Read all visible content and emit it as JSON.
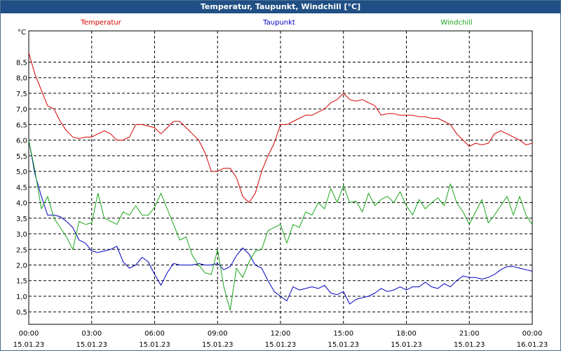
{
  "window": {
    "title": "Temperatur, Taupunkt, Windchill [°C]"
  },
  "colors": {
    "title_bg": "#1f4f84",
    "temperatur": "#d40000",
    "taupunkt": "#0000c0",
    "windchill": "#1aa51a",
    "grid": "#000000"
  },
  "chart_data": {
    "type": "line",
    "title": "Temperatur, Taupunkt, Windchill [°C]",
    "ylabel": "°C",
    "xlabel": "",
    "ylim": [
      0.1,
      9.5
    ],
    "xlim": [
      0,
      24
    ],
    "y_ticks": [
      0.5,
      1.0,
      1.5,
      2.0,
      2.5,
      3.0,
      3.5,
      4.0,
      4.5,
      5.0,
      5.5,
      6.0,
      6.5,
      7.0,
      7.5,
      8.0,
      8.5
    ],
    "y_tick_labels": [
      "0,5",
      "1,0",
      "1,5",
      "2,0",
      "2,5",
      "3,0",
      "3,5",
      "4,0",
      "4,5",
      "5,0",
      "5,5",
      "6,0",
      "6,5",
      "7,0",
      "7,5",
      "8,0",
      "8,5"
    ],
    "x_ticks": [
      {
        "hour": 0,
        "time": "00:00",
        "date": "15.01.23"
      },
      {
        "hour": 3,
        "time": "03:00",
        "date": "15.01.23"
      },
      {
        "hour": 6,
        "time": "06:00",
        "date": "15.01.23"
      },
      {
        "hour": 9,
        "time": "09:00",
        "date": "15.01.23"
      },
      {
        "hour": 12,
        "time": "12:00",
        "date": "15.01.23"
      },
      {
        "hour": 15,
        "time": "15:00",
        "date": "15.01.23"
      },
      {
        "hour": 18,
        "time": "18:00",
        "date": "15.01.23"
      },
      {
        "hour": 21,
        "time": "21:00",
        "date": "15.01.23"
      },
      {
        "hour": 24,
        "time": "00:00",
        "date": "16.01.23"
      }
    ],
    "grid": true,
    "series": [
      {
        "name": "Temperatur",
        "color": "#d40000",
        "x": [
          0,
          0.3,
          0.6,
          0.9,
          1.2,
          1.5,
          1.8,
          2.1,
          2.4,
          2.7,
          3.0,
          3.3,
          3.6,
          3.9,
          4.2,
          4.5,
          4.8,
          5.1,
          5.4,
          5.7,
          6.0,
          6.3,
          6.6,
          6.9,
          7.2,
          7.5,
          7.8,
          8.1,
          8.4,
          8.7,
          9.0,
          9.3,
          9.6,
          9.9,
          10.2,
          10.5,
          10.8,
          11.1,
          11.4,
          11.7,
          12.0,
          12.3,
          12.6,
          12.9,
          13.2,
          13.5,
          13.8,
          14.1,
          14.4,
          14.7,
          15.0,
          15.3,
          15.6,
          15.9,
          16.2,
          16.5,
          16.8,
          17.1,
          17.4,
          17.7,
          18.0,
          18.3,
          18.6,
          18.9,
          19.2,
          19.5,
          19.8,
          20.1,
          20.4,
          20.7,
          21.0,
          21.3,
          21.6,
          21.9,
          22.2,
          22.5,
          22.8,
          23.1,
          23.4,
          23.7,
          24.0
        ],
        "values": [
          8.8,
          8.1,
          7.6,
          7.1,
          7.0,
          6.6,
          6.3,
          6.1,
          6.05,
          6.1,
          6.1,
          6.2,
          6.3,
          6.2,
          6.0,
          6.0,
          6.1,
          6.5,
          6.5,
          6.45,
          6.4,
          6.2,
          6.4,
          6.6,
          6.6,
          6.4,
          6.2,
          6.0,
          5.6,
          5.0,
          5.0,
          5.1,
          5.1,
          4.8,
          4.2,
          4.0,
          4.3,
          5.0,
          5.5,
          5.9,
          6.5,
          6.5,
          6.6,
          6.7,
          6.8,
          6.8,
          6.9,
          7.0,
          7.2,
          7.3,
          7.5,
          7.3,
          7.25,
          7.3,
          7.2,
          7.1,
          6.8,
          6.85,
          6.85,
          6.8,
          6.8,
          6.8,
          6.75,
          6.75,
          6.7,
          6.7,
          6.6,
          6.5,
          6.2,
          6.0,
          5.8,
          5.9,
          5.85,
          5.9,
          6.2,
          6.3,
          6.2,
          6.1,
          6.0,
          5.85,
          5.9
        ]
      },
      {
        "name": "Taupunkt",
        "color": "#0000c0",
        "x": [
          0,
          0.3,
          0.6,
          0.9,
          1.2,
          1.5,
          1.8,
          2.1,
          2.4,
          2.7,
          3.0,
          3.3,
          3.6,
          3.9,
          4.2,
          4.5,
          4.8,
          5.1,
          5.4,
          5.7,
          6.0,
          6.3,
          6.6,
          6.9,
          7.2,
          7.5,
          7.8,
          8.1,
          8.4,
          8.7,
          9.0,
          9.3,
          9.6,
          9.9,
          10.2,
          10.5,
          10.8,
          11.1,
          11.4,
          11.7,
          12.0,
          12.3,
          12.6,
          12.9,
          13.2,
          13.5,
          13.8,
          14.1,
          14.4,
          14.7,
          15.0,
          15.3,
          15.6,
          15.9,
          16.2,
          16.5,
          16.8,
          17.1,
          17.4,
          17.7,
          18.0,
          18.3,
          18.6,
          18.9,
          19.2,
          19.5,
          19.8,
          20.1,
          20.4,
          20.7,
          21.0,
          21.3,
          21.6,
          21.9,
          22.2,
          22.5,
          22.8,
          23.1,
          23.4,
          23.7,
          24.0
        ],
        "values": [
          6.0,
          4.9,
          4.2,
          3.6,
          3.6,
          3.55,
          3.4,
          3.2,
          2.8,
          2.7,
          2.45,
          2.4,
          2.45,
          2.5,
          2.6,
          2.1,
          1.9,
          2.0,
          2.25,
          2.1,
          1.7,
          1.35,
          1.75,
          2.05,
          2.0,
          2.0,
          2.0,
          2.05,
          2.0,
          2.0,
          2.05,
          1.85,
          1.95,
          2.3,
          2.55,
          2.35,
          2.0,
          1.9,
          1.5,
          1.15,
          1.0,
          0.85,
          1.3,
          1.2,
          1.25,
          1.3,
          1.25,
          1.35,
          1.1,
          1.05,
          1.15,
          0.75,
          0.9,
          0.95,
          1.0,
          1.1,
          1.25,
          1.15,
          1.2,
          1.3,
          1.2,
          1.3,
          1.3,
          1.45,
          1.3,
          1.25,
          1.4,
          1.3,
          1.5,
          1.65,
          1.6,
          1.6,
          1.55,
          1.6,
          1.7,
          1.85,
          1.95,
          1.95,
          1.9,
          1.85,
          1.8
        ]
      },
      {
        "name": "Windchill",
        "color": "#1aa51a",
        "x": [
          0,
          0.3,
          0.6,
          0.9,
          1.2,
          1.5,
          1.8,
          2.1,
          2.4,
          2.7,
          3.0,
          3.3,
          3.6,
          3.9,
          4.2,
          4.5,
          4.8,
          5.1,
          5.4,
          5.7,
          6.0,
          6.3,
          6.6,
          6.9,
          7.2,
          7.5,
          7.8,
          8.1,
          8.4,
          8.7,
          9.0,
          9.3,
          9.6,
          9.9,
          10.2,
          10.5,
          10.8,
          11.1,
          11.4,
          11.7,
          12.0,
          12.3,
          12.6,
          12.9,
          13.2,
          13.5,
          13.8,
          14.1,
          14.4,
          14.7,
          15.0,
          15.3,
          15.6,
          15.9,
          16.2,
          16.5,
          16.8,
          17.1,
          17.4,
          17.7,
          18.0,
          18.3,
          18.6,
          18.9,
          19.2,
          19.5,
          19.8,
          20.1,
          20.4,
          20.7,
          21.0,
          21.3,
          21.6,
          21.9,
          22.2,
          22.5,
          22.8,
          23.1,
          23.4,
          23.7,
          24.0
        ],
        "values": [
          6.0,
          5.0,
          3.8,
          4.2,
          3.5,
          3.2,
          2.9,
          2.5,
          3.4,
          3.3,
          3.35,
          4.3,
          3.5,
          3.4,
          3.3,
          3.7,
          3.6,
          3.9,
          3.6,
          3.6,
          3.85,
          4.3,
          3.8,
          3.3,
          2.8,
          2.9,
          2.3,
          2.0,
          1.75,
          1.7,
          2.5,
          1.3,
          0.55,
          1.9,
          1.6,
          2.1,
          2.45,
          2.5,
          3.1,
          3.2,
          3.3,
          2.7,
          3.3,
          3.2,
          3.7,
          3.6,
          4.0,
          3.8,
          4.45,
          4.0,
          4.55,
          4.0,
          4.05,
          3.7,
          4.3,
          3.9,
          4.1,
          4.2,
          4.0,
          4.35,
          3.9,
          3.6,
          4.1,
          3.8,
          4.0,
          4.15,
          3.9,
          4.6,
          4.0,
          3.7,
          3.3,
          3.7,
          4.1,
          3.35,
          3.6,
          3.9,
          4.2,
          3.6,
          4.2,
          3.6,
          3.3
        ]
      }
    ]
  }
}
